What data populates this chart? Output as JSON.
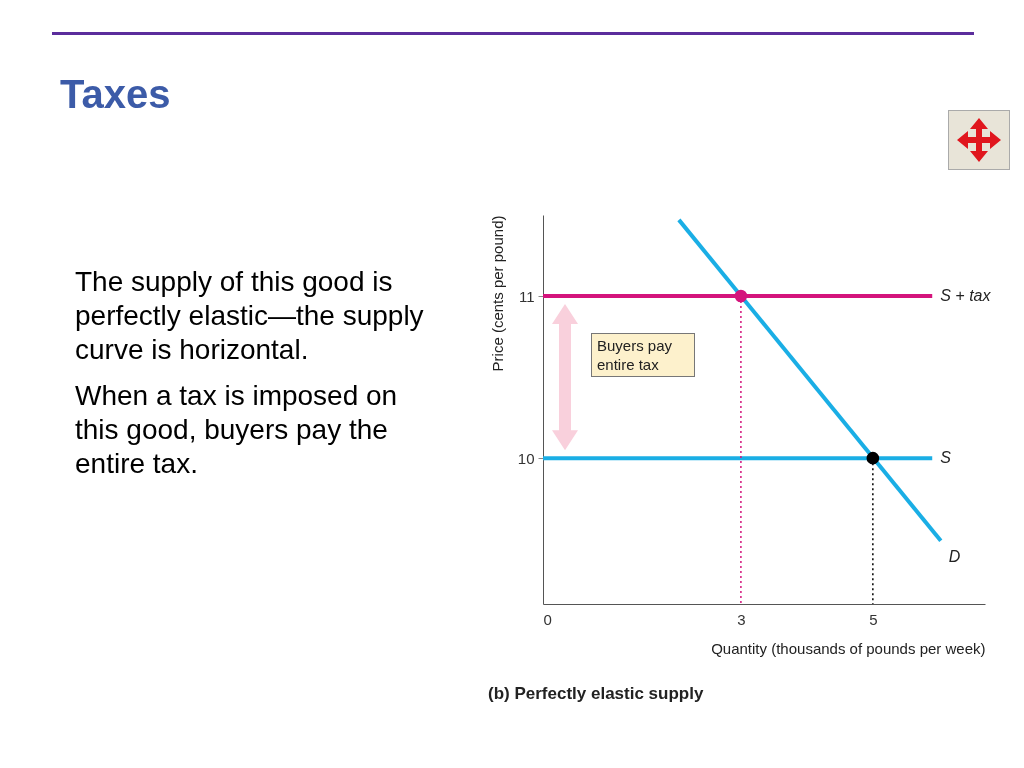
{
  "chart_data": {
    "type": "line",
    "title": "Taxes",
    "xlabel": "Quantity (thousands of pounds per week)",
    "ylabel": "Price (cents per pound)",
    "annotations": [
      "The supply of this good is perfectly elastic—the supply curve is horizontal.",
      "When a tax is imposed on this good, buyers pay the entire tax.",
      "Buyers pay entire tax",
      "(b) Perfectly elastic supply"
    ],
    "xlim": [
      0,
      6.7
    ],
    "xticks": [
      0,
      3,
      5
    ],
    "ylim": [
      9.1,
      11.5
    ],
    "yticks": [
      10,
      11
    ],
    "grid": false,
    "series": [
      {
        "name": "S + tax",
        "color": "#d4147c",
        "x": [
          0,
          5.9
        ],
        "values": [
          11,
          11
        ]
      },
      {
        "name": "S",
        "color": "#1aaee5",
        "x": [
          0,
          5.9
        ],
        "values": [
          10,
          10
        ]
      },
      {
        "name": "D",
        "color": "#1aaee5",
        "x": [
          2.06,
          6.03
        ],
        "values": [
          11.47,
          9.49
        ]
      },
      {
        "color": "#d4147c",
        "x": [
          3,
          3
        ],
        "values": [
          11,
          9.1
        ],
        "line_style": "dotted"
      },
      {
        "color": "#000000",
        "x": [
          5,
          5
        ],
        "values": [
          10,
          9.1
        ],
        "line_style": "dotted"
      },
      {
        "type": "scatter",
        "color": "#d4147c",
        "x": [
          3
        ],
        "values": [
          11
        ],
        "marker": "circle"
      },
      {
        "type": "scatter",
        "color": "#000000",
        "x": [
          5
        ],
        "values": [
          10
        ],
        "marker": "circle"
      }
    ]
  }
}
